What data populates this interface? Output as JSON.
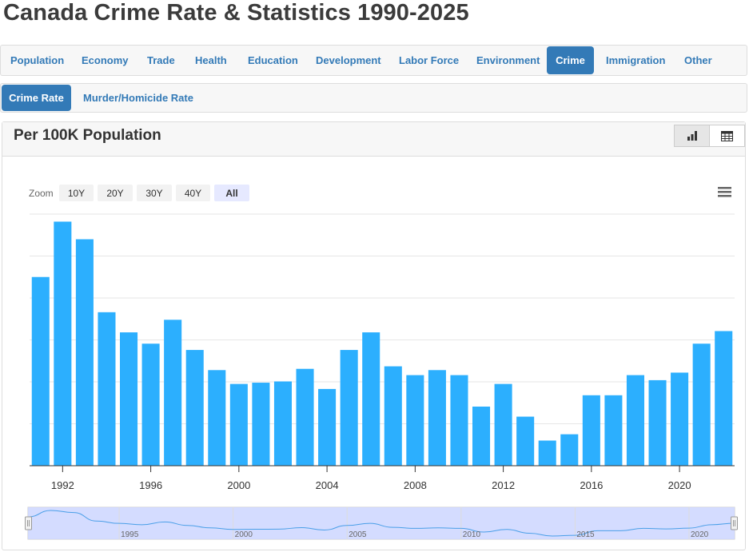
{
  "page_title": "Canada Crime Rate & Statistics 1990-2025",
  "nav": {
    "tabs": [
      {
        "label": "Population",
        "active": false
      },
      {
        "label": "Economy",
        "active": false
      },
      {
        "label": "Trade",
        "active": false
      },
      {
        "label": "Health",
        "active": false
      },
      {
        "label": "Education",
        "active": false
      },
      {
        "label": "Development",
        "active": false
      },
      {
        "label": "Labor Force",
        "active": false
      },
      {
        "label": "Environment",
        "active": false
      },
      {
        "label": "Crime",
        "active": true
      },
      {
        "label": "Immigration",
        "active": false
      },
      {
        "label": "Other",
        "active": false
      }
    ],
    "subtabs": [
      {
        "label": "Crime Rate",
        "active": true
      },
      {
        "label": "Murder/Homicide Rate",
        "active": false
      }
    ]
  },
  "panel": {
    "title": "Per 100K Population",
    "view_buttons": [
      {
        "icon": "bar-chart-icon",
        "active": true
      },
      {
        "icon": "table-icon",
        "active": false
      }
    ]
  },
  "zoom": {
    "label": "Zoom",
    "buttons": [
      {
        "label": "10Y",
        "active": false
      },
      {
        "label": "20Y",
        "active": false
      },
      {
        "label": "30Y",
        "active": false
      },
      {
        "label": "40Y",
        "active": false
      },
      {
        "label": "All",
        "active": true
      }
    ]
  },
  "menu_icon": "hamburger-menu-icon",
  "navigator_labels": [
    "1995",
    "2000",
    "2005",
    "2010",
    "2015",
    "2020"
  ],
  "chart_data": {
    "type": "bar",
    "title": "",
    "xlabel": "",
    "ylabel": "",
    "x": [
      1991,
      1992,
      1993,
      1994,
      1995,
      1996,
      1997,
      1998,
      1999,
      2000,
      2001,
      2002,
      2003,
      2004,
      2005,
      2006,
      2007,
      2008,
      2009,
      2010,
      2011,
      2012,
      2013,
      2014,
      2015,
      2016,
      2017,
      2018,
      2019,
      2020,
      2021,
      2022
    ],
    "values": [
      1.5,
      1.94,
      1.8,
      1.22,
      1.06,
      0.97,
      1.16,
      0.92,
      0.76,
      0.65,
      0.66,
      0.67,
      0.77,
      0.61,
      0.92,
      1.06,
      0.79,
      0.72,
      0.76,
      0.72,
      0.47,
      0.65,
      0.39,
      0.2,
      0.25,
      0.56,
      0.56,
      0.72,
      0.68,
      0.74,
      0.97,
      1.07
    ],
    "x_ticks": [
      1992,
      1996,
      2000,
      2004,
      2008,
      2012,
      2016,
      2020
    ],
    "ylim": [
      0,
      2
    ],
    "y_gridlines": 6,
    "y_tick_labels_visible": false,
    "bar_color": "#2caffe",
    "navigator": {
      "range": [
        1991,
        2022
      ],
      "labels_visible": true
    }
  }
}
